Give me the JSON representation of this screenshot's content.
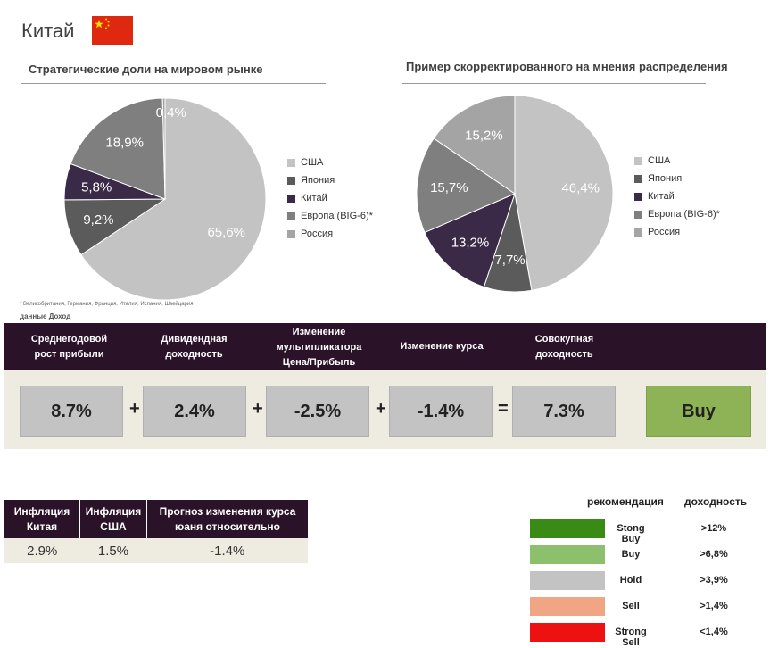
{
  "page": {
    "title": "Китай"
  },
  "colors": {
    "usa": "#c3c3c3",
    "japan": "#5b5b5b",
    "china": "#3a2a48",
    "europe": "#7f7f7f",
    "russia": "#a4a4a4",
    "header_bg": "#2a1228",
    "panel_bg": "#eeebe0",
    "box_bg": "#c3c3c3",
    "buy_bg": "#8db356"
  },
  "chart_data": [
    {
      "type": "pie",
      "title": "Стратегические доли на мировом рынке",
      "categories": [
        "США",
        "Япония",
        "Китай",
        "Европа (BIG-6)*",
        "Россия"
      ],
      "values": [
        65.6,
        9.2,
        5.8,
        18.9,
        0.4
      ],
      "labels": [
        "65,6%",
        "9,2%",
        "5,8%",
        "18,9%",
        "0,4%"
      ],
      "legend": "right"
    },
    {
      "type": "pie",
      "title": "Пример скорректированного на мнения распределения",
      "categories": [
        "США",
        "Япония",
        "Китай",
        "Европа (BIG-6)*",
        "Россия"
      ],
      "values": [
        46.4,
        7.7,
        13.2,
        15.7,
        15.2
      ],
      "labels": [
        "46,4%",
        "7,7%",
        "13,2%",
        "15,7%",
        "15,2%"
      ],
      "legend": "right"
    }
  ],
  "notes": {
    "footnote": "* Великобритания, Германия, Франция, Италия, Испания, Швейцария",
    "source": "данные Доход"
  },
  "metrics": {
    "headers": [
      "Среднегодовой\nрост прибыли",
      "Дивидендная\nдоходность",
      "Изменение\nмультипликатора\nЦена/Прибыль",
      "Изменение курса",
      "Совокупная\nдоходность"
    ],
    "values": [
      "8.7%",
      "2.4%",
      "-2.5%",
      "-1.4%",
      "7.3%"
    ],
    "operators": [
      "+",
      "+",
      "+",
      "="
    ],
    "recommendation": "Buy"
  },
  "inflation_table": {
    "headers": [
      "Инфляция\nКитая",
      "Инфляция\nСША",
      "Прогноз изменения курса\nюаня относительно"
    ],
    "values": [
      "2.9%",
      "1.5%",
      "-1.4%"
    ]
  },
  "recommendation_scale": {
    "header_rec": "рекомендация",
    "header_yield": "доходность",
    "rows": [
      {
        "label": "Stong Buy",
        "yield": ">12%",
        "color": "#3a8a16"
      },
      {
        "label": "Buy",
        "yield": ">6,8%",
        "color": "#8dc06c"
      },
      {
        "label": "Hold",
        "yield": ">3,9%",
        "color": "#c3c3c3"
      },
      {
        "label": "Sell",
        "yield": ">1,4%",
        "color": "#f0a585"
      },
      {
        "label": "Strong Sell",
        "yield": "<1,4%",
        "color": "#ee1111"
      }
    ]
  }
}
